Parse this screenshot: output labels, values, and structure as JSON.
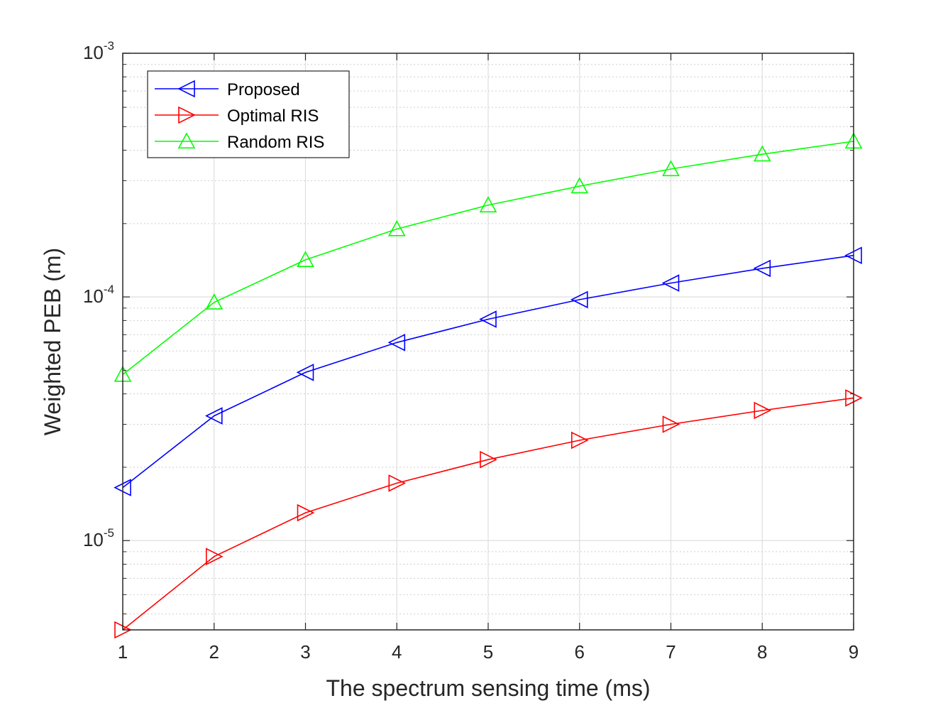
{
  "chart_data": {
    "type": "line",
    "title": "",
    "xlabel": "The spectrum sensing time (ms)",
    "ylabel": "Weighted PEB (m)",
    "xlim": [
      1,
      9
    ],
    "ylim": [
      4.3e-06,
      0.001
    ],
    "y_scale": "log",
    "grid": true,
    "minor_grid": true,
    "legend_position": "top-left",
    "x_ticks": [
      "1",
      "2",
      "3",
      "4",
      "5",
      "6",
      "7",
      "8",
      "9"
    ],
    "y_ticks": [
      {
        "base": "10",
        "exp": "-5"
      },
      {
        "base": "10",
        "exp": "-4"
      },
      {
        "base": "10",
        "exp": "-3"
      }
    ],
    "x": [
      1,
      2,
      3,
      4,
      5,
      6,
      7,
      8,
      9
    ],
    "series": [
      {
        "name": "Proposed",
        "color": "#0000ff",
        "marker": "triangle-left",
        "values": [
          1.65e-05,
          3.25e-05,
          4.9e-05,
          6.5e-05,
          8.1e-05,
          9.75e-05,
          0.000114,
          0.000131,
          0.000148
        ]
      },
      {
        "name": "Optimal RIS",
        "color": "#ff0000",
        "marker": "triangle-right",
        "values": [
          4.3e-06,
          8.6e-06,
          1.3e-05,
          1.72e-05,
          2.15e-05,
          2.58e-05,
          3e-05,
          3.42e-05,
          3.85e-05
        ]
      },
      {
        "name": "Random RIS",
        "color": "#00ff00",
        "marker": "triangle-up",
        "values": [
          4.8e-05,
          9.5e-05,
          0.000142,
          0.00019,
          0.000238,
          0.000285,
          0.000335,
          0.000385,
          0.000435
        ]
      }
    ]
  }
}
